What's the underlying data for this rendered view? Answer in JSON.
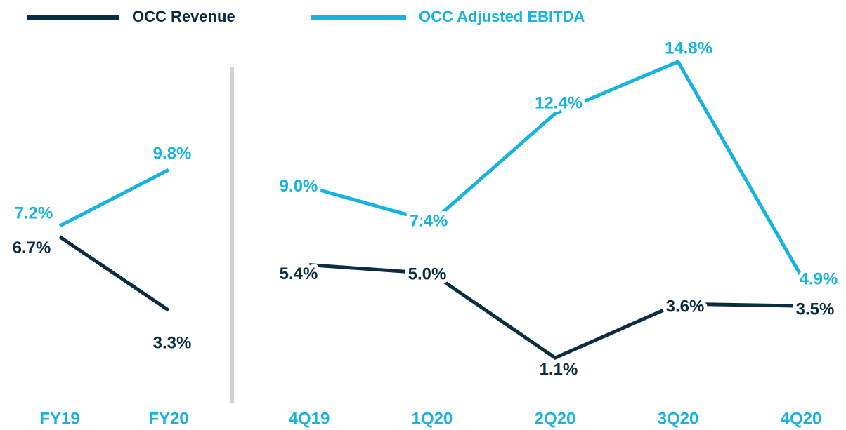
{
  "chart_data": [
    {
      "type": "line",
      "categories": [
        "FY19",
        "FY20"
      ],
      "series": [
        {
          "name": "OCC Revenue",
          "color": "#0b2d42",
          "values": [
            6.7,
            3.3
          ],
          "value_labels": [
            "6.7%",
            "3.3%"
          ]
        },
        {
          "name": "OCC Adjusted EBITDA",
          "color": "#16b3e0",
          "values": [
            7.2,
            9.8
          ],
          "value_labels": [
            "7.2%",
            "9.8%"
          ]
        }
      ],
      "ylim": [
        0,
        16
      ]
    },
    {
      "type": "line",
      "categories": [
        "4Q19",
        "1Q20",
        "2Q20",
        "3Q20",
        "4Q20"
      ],
      "series": [
        {
          "color": "#0b2d42",
          "values": [
            5.4,
            5.0,
            1.1,
            3.6,
            3.5
          ],
          "value_labels": [
            "5.4%",
            "5.0%",
            "1.1%",
            "3.6%",
            "3.5%"
          ]
        },
        {
          "color": "#16b3e0",
          "values": [
            9.0,
            7.4,
            12.4,
            14.8,
            4.9
          ],
          "value_labels": [
            "9.0%",
            "7.4%",
            "12.4%",
            "14.8%",
            "4.9%"
          ]
        }
      ],
      "ylim": [
        0,
        16
      ]
    }
  ]
}
